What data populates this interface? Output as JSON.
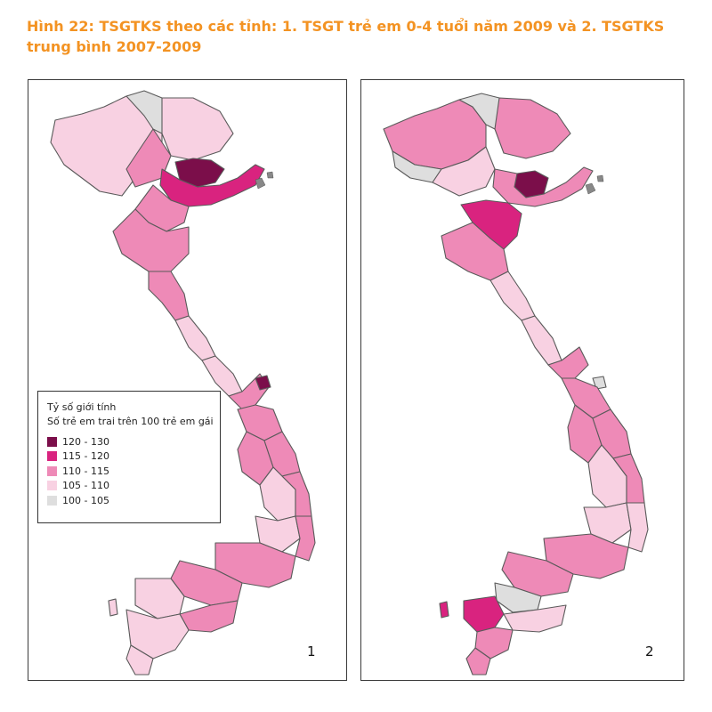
{
  "figure": {
    "title": "Hình 22: TSGTKS theo các tỉnh: 1. TSGT trẻ em 0-4 tuổi năm 2009 và 2. TSGTKS trung bình 2007-2009"
  },
  "legend": {
    "title_line1": "Tỷ số giới tính",
    "title_line2": "Số trẻ em trai trên 100 trẻ em gái",
    "classes": [
      {
        "label": "120 - 130",
        "color": "#7b0e4a"
      },
      {
        "label": "115 - 120",
        "color": "#d9237f"
      },
      {
        "label": "110 - 115",
        "color": "#ee8ab7"
      },
      {
        "label": "105 - 110",
        "color": "#f8d1e2"
      },
      {
        "label": "100 - 105",
        "color": "#dedede"
      }
    ]
  },
  "maps": [
    {
      "number": "1"
    },
    {
      "number": "2"
    }
  ]
}
